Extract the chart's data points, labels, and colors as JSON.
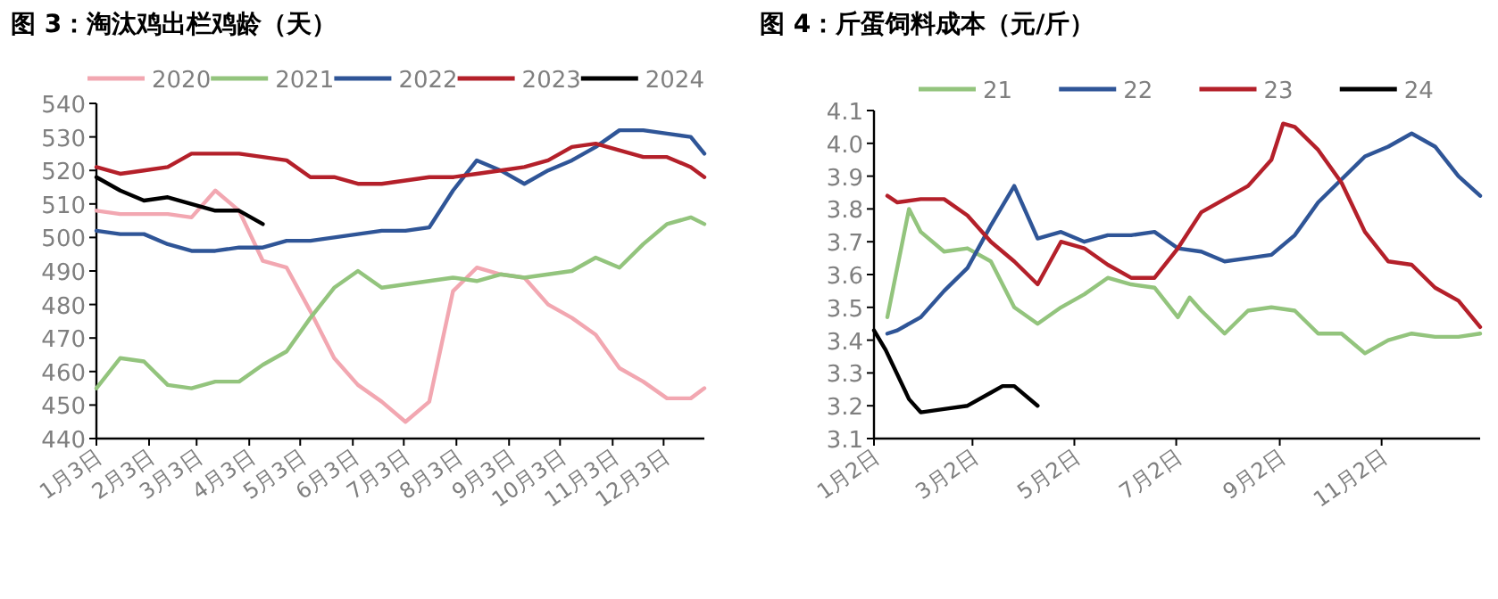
{
  "chart_data": [
    {
      "type": "line",
      "title": "图 3：淘汰鸡出栏鸡龄（天）",
      "legend": "top",
      "grid": false,
      "x": [
        "--01-03",
        "--01-17",
        "--01-31",
        "--02-14",
        "--02-28",
        "--03-14",
        "--03-28",
        "--04-11",
        "--04-25",
        "--05-09",
        "--05-23",
        "--06-06",
        "--06-20",
        "--07-04",
        "--07-18",
        "--08-01",
        "--08-15",
        "--08-29",
        "--09-12",
        "--09-26",
        "--10-10",
        "--10-24",
        "--11-07",
        "--11-21",
        "--12-05",
        "--12-19",
        "--12-27"
      ],
      "xlim": [
        "--01-03",
        "--12-27"
      ],
      "xticks": [
        {
          "value": "--01-03",
          "label": "1月3日"
        },
        {
          "value": "--02-03",
          "label": "2月3日"
        },
        {
          "value": "--03-03",
          "label": "3月3日"
        },
        {
          "value": "--04-03",
          "label": "4月3日"
        },
        {
          "value": "--05-03",
          "label": "5月3日"
        },
        {
          "value": "--06-03",
          "label": "6月3日"
        },
        {
          "value": "--07-03",
          "label": "7月3日"
        },
        {
          "value": "--08-03",
          "label": "8月3日"
        },
        {
          "value": "--09-03",
          "label": "9月3日"
        },
        {
          "value": "--10-03",
          "label": "10月3日"
        },
        {
          "value": "--11-03",
          "label": "11月3日"
        },
        {
          "value": "--12-03",
          "label": "12月3日"
        }
      ],
      "ylim": [
        440,
        540
      ],
      "yticks": [
        440,
        450,
        460,
        470,
        480,
        490,
        500,
        510,
        520,
        530,
        540
      ],
      "series": [
        {
          "name": "2020",
          "color": "#f2a7b1",
          "values": [
            508,
            507,
            507,
            507,
            506,
            514,
            508,
            493,
            491,
            478,
            464,
            456,
            451,
            445,
            451,
            484,
            491,
            489,
            488,
            480,
            476,
            471,
            461,
            457,
            452,
            452,
            455
          ]
        },
        {
          "name": "2021",
          "color": "#93c47d",
          "values": [
            455,
            464,
            463,
            456,
            455,
            457,
            457,
            462,
            466,
            476,
            485,
            490,
            485,
            486,
            487,
            488,
            487,
            489,
            488,
            489,
            490,
            494,
            491,
            498,
            504,
            506,
            504
          ]
        },
        {
          "name": "2022",
          "color": "#2f5597",
          "values": [
            502,
            501,
            501,
            498,
            496,
            496,
            497,
            497,
            499,
            499,
            500,
            501,
            502,
            502,
            503,
            514,
            523,
            520,
            516,
            520,
            523,
            527,
            532,
            532,
            531,
            530,
            525
          ]
        },
        {
          "name": "2023",
          "color": "#b4202a",
          "values": [
            521,
            519,
            520,
            521,
            525,
            525,
            525,
            524,
            523,
            518,
            518,
            516,
            516,
            517,
            518,
            518,
            519,
            520,
            521,
            523,
            527,
            528,
            526,
            524,
            524,
            521,
            518
          ]
        },
        {
          "name": "2024",
          "color": "#000000",
          "values": [
            518,
            514,
            511,
            512,
            510,
            508,
            508,
            504,
            null,
            null,
            null,
            null,
            null,
            null,
            null,
            null,
            null,
            null,
            null,
            null,
            null,
            null,
            null,
            null,
            null,
            null,
            null
          ]
        }
      ]
    },
    {
      "type": "line",
      "title": "图 4：斤蛋饲料成本（元/斤）",
      "legend": "top",
      "grid": false,
      "xlim": [
        "--01-02",
        "--12-31"
      ],
      "xticks": [
        {
          "value": "--01-02",
          "label": "1月2日"
        },
        {
          "value": "--03-02",
          "label": "3月2日"
        },
        {
          "value": "--05-02",
          "label": "5月2日"
        },
        {
          "value": "--07-02",
          "label": "7月2日"
        },
        {
          "value": "--09-02",
          "label": "9月2日"
        },
        {
          "value": "--11-02",
          "label": "11月2日"
        }
      ],
      "ylim": [
        3.1,
        4.1
      ],
      "yticks": [
        {
          "value": 3.1,
          "label": "3.1"
        },
        {
          "value": 3.2,
          "label": "3.2"
        },
        {
          "value": 3.3,
          "label": "3.3"
        },
        {
          "value": 3.4,
          "label": "3.4"
        },
        {
          "value": 3.5,
          "label": "3.5"
        },
        {
          "value": 3.6,
          "label": "3.6"
        },
        {
          "value": 3.7,
          "label": "3.7"
        },
        {
          "value": 3.8,
          "label": "3.8"
        },
        {
          "value": 3.9,
          "label": "3.9"
        },
        {
          "value": 4,
          "label": "4.0"
        },
        {
          "value": 4.1,
          "label": "4.1"
        }
      ],
      "series": [
        {
          "name": "21",
          "color": "#93c47d",
          "x": [
            "--01-10",
            "--01-23",
            "--01-30",
            "--02-13",
            "--02-27",
            "--03-13",
            "--03-27",
            "--04-10",
            "--04-24",
            "--05-08",
            "--05-22",
            "--06-05",
            "--06-19",
            "--07-03",
            "--07-10",
            "--07-17",
            "--07-31",
            "--08-14",
            "--08-28",
            "--09-11",
            "--09-25",
            "--10-09",
            "--10-23",
            "--11-06",
            "--11-20",
            "--12-04",
            "--12-18",
            "--12-31"
          ],
          "values": [
            3.47,
            3.8,
            3.73,
            3.67,
            3.68,
            3.64,
            3.5,
            3.45,
            3.5,
            3.54,
            3.59,
            3.57,
            3.56,
            3.47,
            3.53,
            3.49,
            3.42,
            3.49,
            3.5,
            3.49,
            3.42,
            3.42,
            3.36,
            3.4,
            3.42,
            3.41,
            3.41,
            3.42
          ]
        },
        {
          "name": "22",
          "color": "#2f5597",
          "x": [
            "--01-10",
            "--01-16",
            "--01-30",
            "--02-13",
            "--02-27",
            "--03-13",
            "--03-27",
            "--04-10",
            "--04-24",
            "--05-08",
            "--05-22",
            "--06-05",
            "--06-19",
            "--07-03",
            "--07-17",
            "--07-31",
            "--08-14",
            "--08-28",
            "--09-11",
            "--09-25",
            "--10-09",
            "--10-23",
            "--11-06",
            "--11-20",
            "--12-04",
            "--12-18",
            "--12-31"
          ],
          "values": [
            3.42,
            3.43,
            3.47,
            3.55,
            3.62,
            3.75,
            3.87,
            3.71,
            3.73,
            3.7,
            3.72,
            3.72,
            3.73,
            3.68,
            3.67,
            3.64,
            3.65,
            3.66,
            3.72,
            3.82,
            3.89,
            3.96,
            3.99,
            4.03,
            3.99,
            3.9,
            3.84
          ]
        },
        {
          "name": "23",
          "color": "#b4202a",
          "x": [
            "--01-10",
            "--01-16",
            "--01-30",
            "--02-13",
            "--02-27",
            "--03-13",
            "--03-27",
            "--04-10",
            "--04-24",
            "--05-08",
            "--05-22",
            "--06-05",
            "--06-19",
            "--07-03",
            "--07-17",
            "--07-31",
            "--08-14",
            "--08-28",
            "--09-04",
            "--09-11",
            "--09-25",
            "--10-09",
            "--10-23",
            "--11-06",
            "--11-20",
            "--12-04",
            "--12-18",
            "--12-31"
          ],
          "values": [
            3.84,
            3.82,
            3.83,
            3.83,
            3.78,
            3.7,
            3.64,
            3.57,
            3.7,
            3.68,
            3.63,
            3.59,
            3.59,
            3.68,
            3.79,
            3.83,
            3.87,
            3.95,
            4.06,
            4.05,
            3.98,
            3.88,
            3.73,
            3.64,
            3.63,
            3.56,
            3.52,
            3.44
          ]
        },
        {
          "name": "24",
          "color": "#000000",
          "x": [
            "--01-02",
            "--01-09",
            "--01-23",
            "--01-30",
            "--02-13",
            "--02-27",
            "--03-13",
            "--03-20",
            "--03-27",
            "--04-10"
          ],
          "values": [
            3.43,
            3.37,
            3.22,
            3.18,
            3.19,
            3.2,
            3.24,
            3.26,
            3.26,
            3.2
          ]
        }
      ]
    }
  ]
}
